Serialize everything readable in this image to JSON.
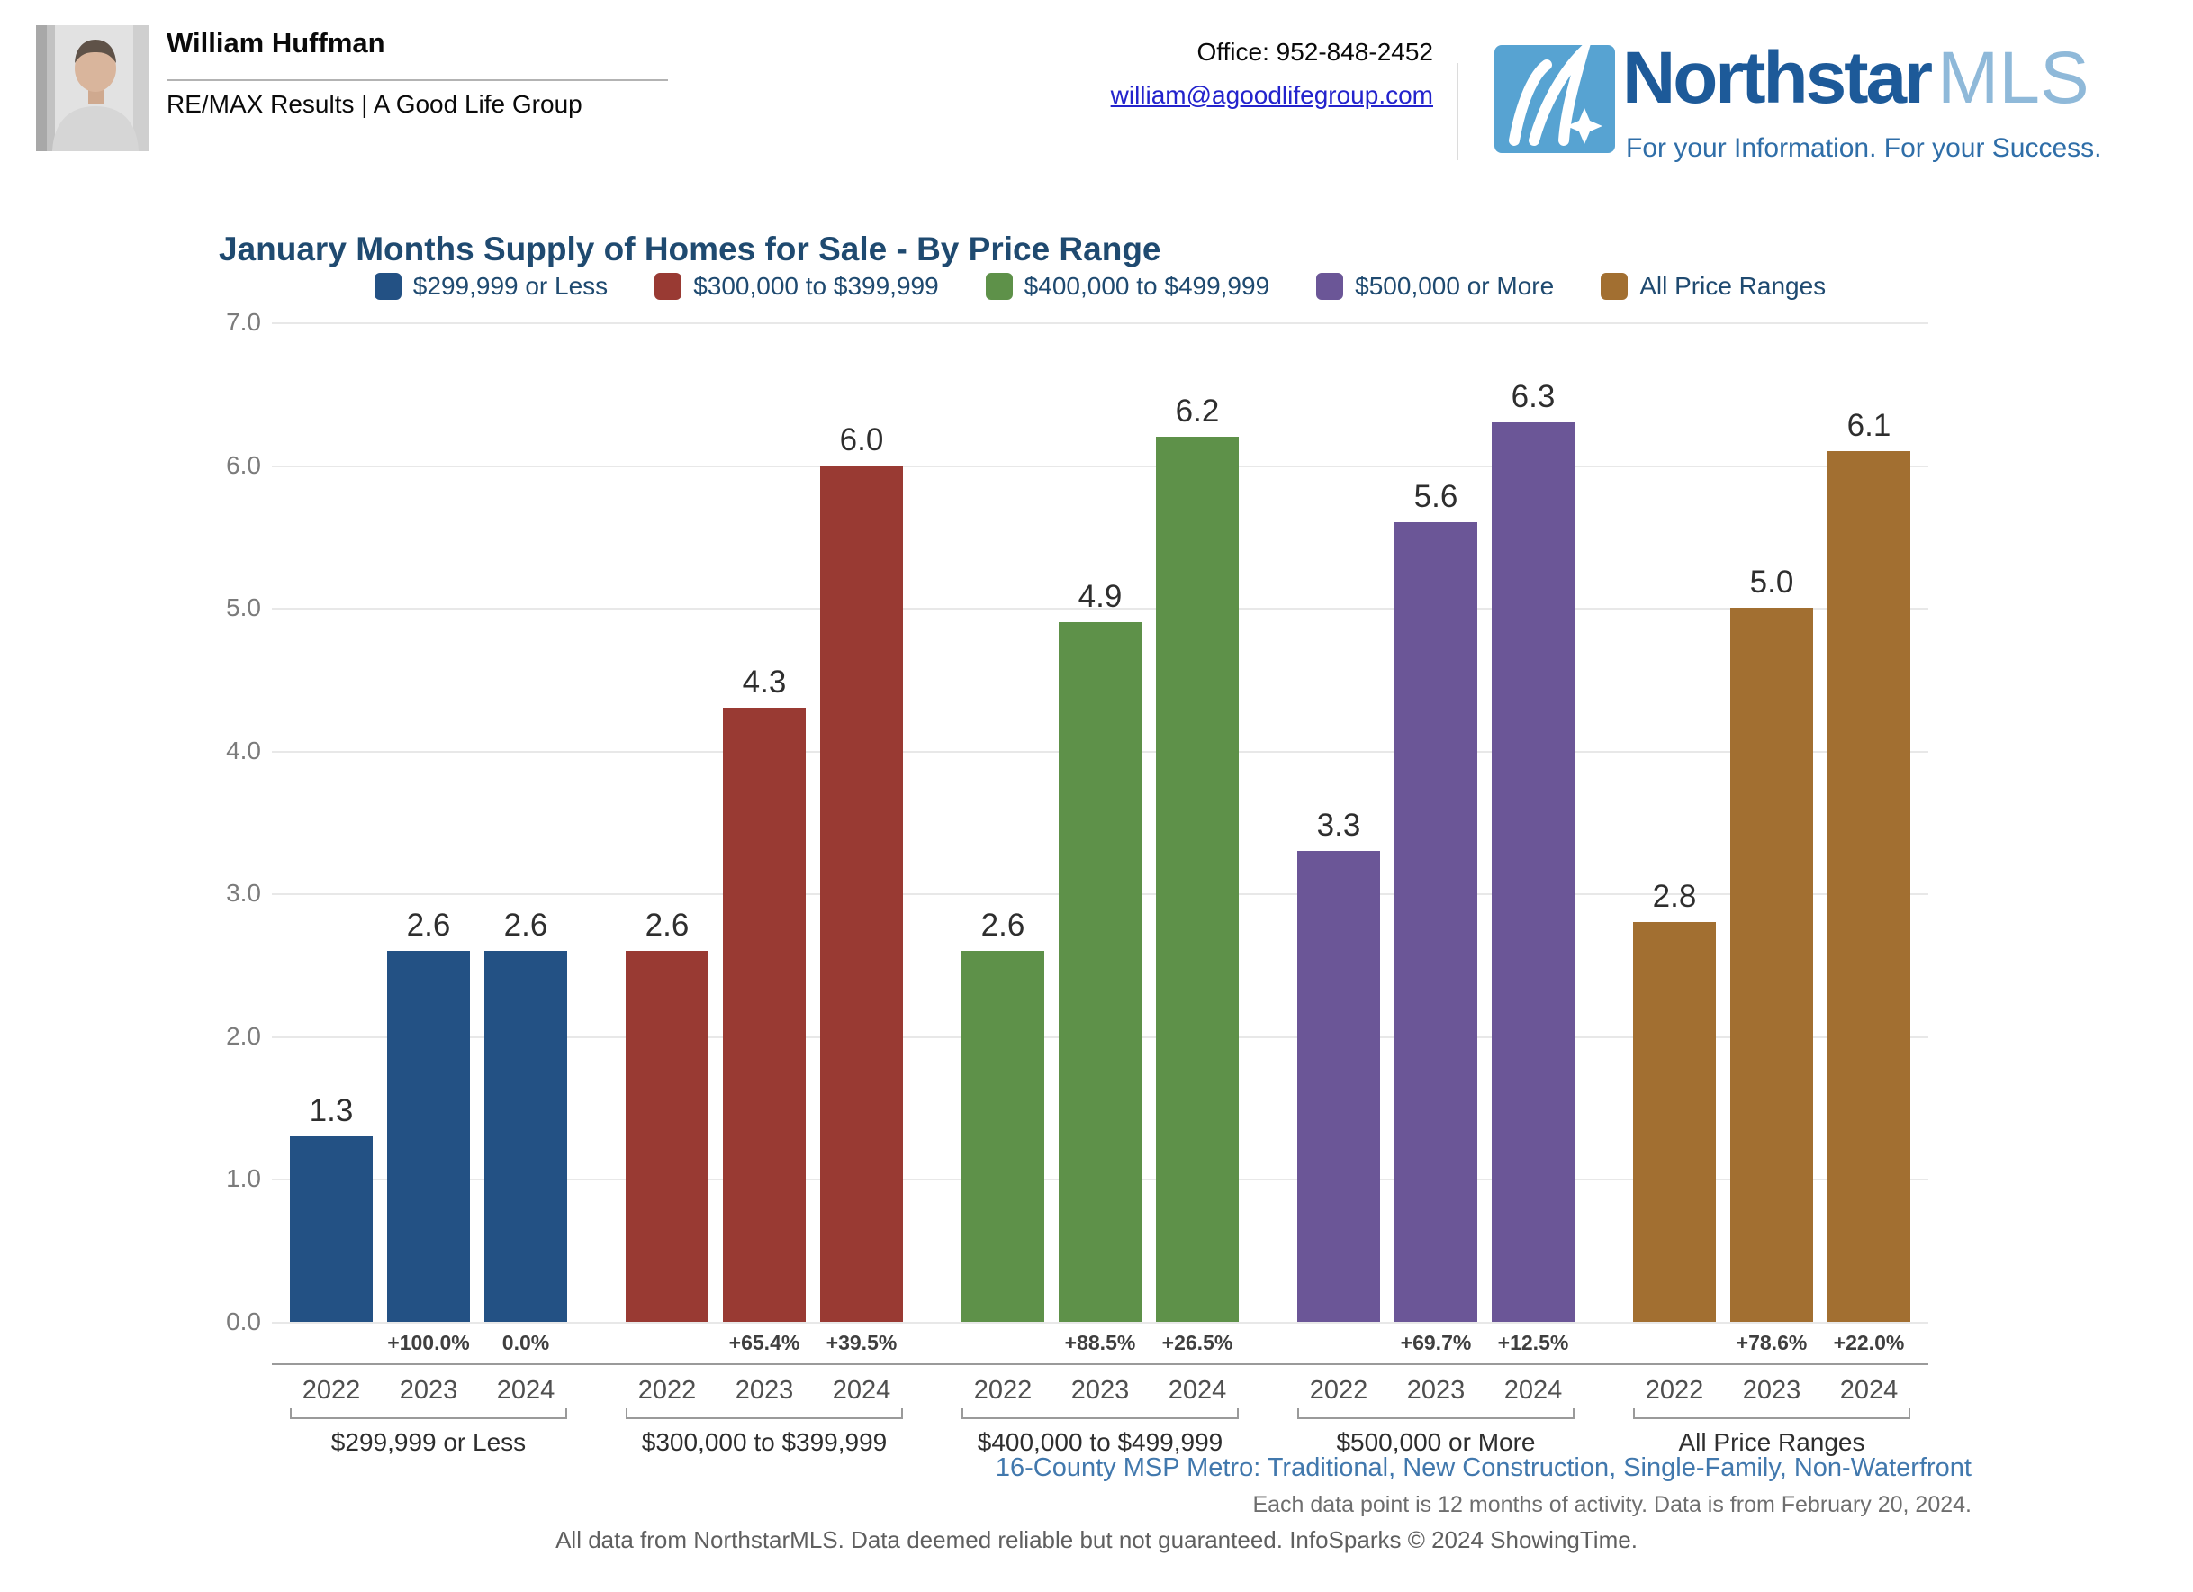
{
  "header": {
    "agent_name": "William Huffman",
    "agent_company": "RE/MAX Results | A Good Life Group",
    "office_phone": "Office: 952-848-2452",
    "email": "william@agoodlifegroup.com"
  },
  "logo": {
    "brand": "Northstar",
    "brand_suffix": "MLS",
    "tagline": "For your Information. For your Success.",
    "icon_color": "#57a3d2",
    "brand_color": "#1d5a99",
    "suffix_color": "#8fb9d9",
    "tagline_color": "#2f6ea8"
  },
  "chart_data": {
    "type": "bar",
    "title": "January Months Supply of Homes for Sale - By Price Range",
    "xlabel": "",
    "ylabel": "",
    "ylim": [
      0.0,
      7.0
    ],
    "ytick_labels": [
      "7.0",
      "6.0",
      "5.0",
      "4.0",
      "3.0",
      "2.0",
      "1.0",
      "0.0"
    ],
    "grid": true,
    "legend_position": "top",
    "years": [
      "2022",
      "2023",
      "2024"
    ],
    "groups": [
      {
        "label": "$299,999 or Less",
        "color": "#235184",
        "values": [
          1.3,
          2.6,
          2.6
        ],
        "pct_change": [
          "",
          "+100.0%",
          "0.0%"
        ]
      },
      {
        "label": "$300,000 to $399,999",
        "color": "#993a33",
        "values": [
          2.6,
          4.3,
          6.0
        ],
        "pct_change": [
          "",
          "+65.4%",
          "+39.5%"
        ]
      },
      {
        "label": "$400,000 to $499,999",
        "color": "#5e9149",
        "values": [
          2.6,
          4.9,
          6.2
        ],
        "pct_change": [
          "",
          "+88.5%",
          "+26.5%"
        ]
      },
      {
        "label": "$500,000 or More",
        "color": "#6b5697",
        "values": [
          3.3,
          5.6,
          6.3
        ],
        "pct_change": [
          "",
          "+69.7%",
          "+12.5%"
        ]
      },
      {
        "label": "All Price Ranges",
        "color": "#a26f31",
        "values": [
          2.8,
          5.0,
          6.1
        ],
        "pct_change": [
          "",
          "+78.6%",
          "+22.0%"
        ]
      }
    ]
  },
  "footnotes": {
    "market": "16-County MSP Metro: Traditional, New Construction, Single-Family, Non-Waterfront",
    "activity": "Each data point is 12 months of activity. Data is from February 20, 2024.",
    "disclaimer": "All data from NorthstarMLS. Data deemed reliable but not guaranteed. InfoSparks © 2024 ShowingTime."
  }
}
